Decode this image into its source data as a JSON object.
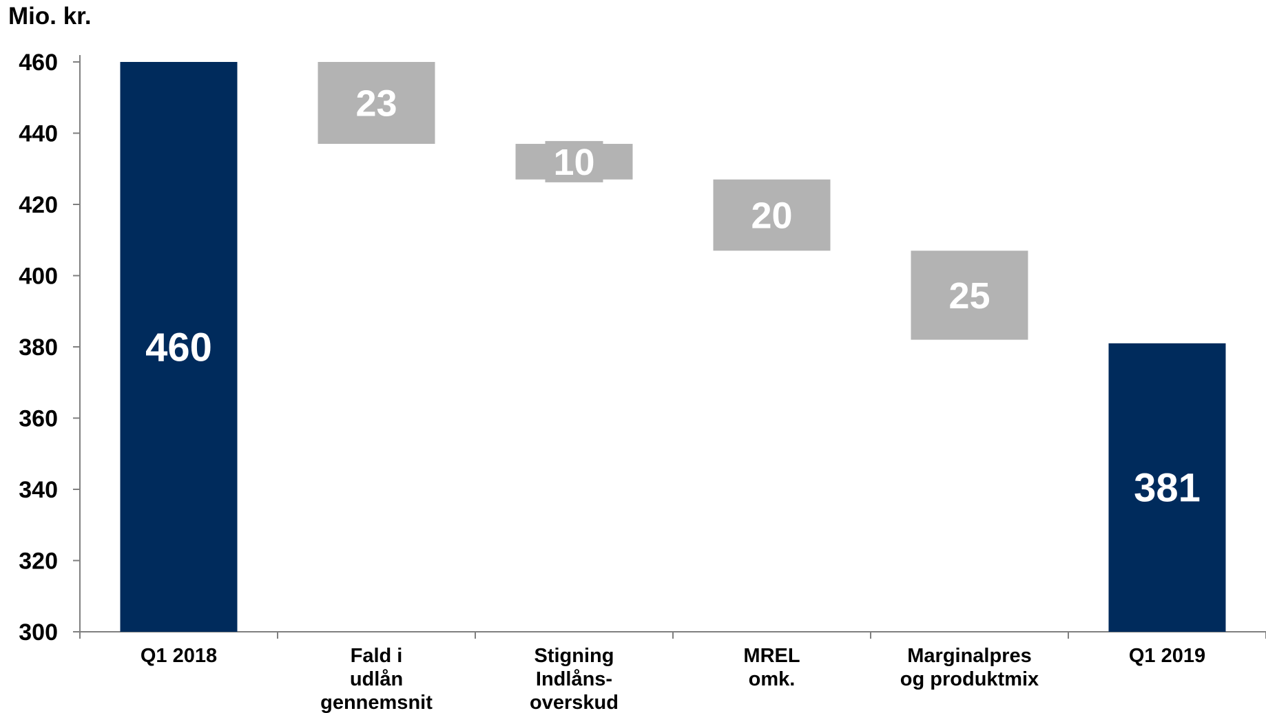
{
  "chart_data": {
    "type": "waterfall",
    "unit_label": "Mio. kr.",
    "ylim": [
      300,
      460
    ],
    "yticks": [
      460,
      440,
      420,
      400,
      380,
      360,
      340,
      320,
      300
    ],
    "ytick_labels": [
      "460",
      "440",
      "420",
      "400",
      "380",
      "360",
      "340",
      "320",
      "300"
    ],
    "categories": [
      [
        "Q1 2018"
      ],
      [
        "Fald i",
        "udlån",
        "gennemsnit"
      ],
      [
        "Stigning",
        "Indlåns-",
        "overskud"
      ],
      [
        "MREL",
        "omk."
      ],
      [
        "Marginalpres",
        "og produktmix"
      ],
      [
        "Q1 2019"
      ]
    ],
    "bars": [
      {
        "kind": "total",
        "value": 460,
        "label": "460"
      },
      {
        "kind": "decrease",
        "value": 23,
        "label": "23"
      },
      {
        "kind": "decrease",
        "value": 10,
        "label": "10"
      },
      {
        "kind": "decrease",
        "value": 20,
        "label": "20"
      },
      {
        "kind": "decrease",
        "value": 25,
        "label": "25"
      },
      {
        "kind": "total",
        "value": 381,
        "label": "381"
      }
    ],
    "colors": {
      "total": "#002b5c",
      "decrease": "#b3b3b3",
      "label_on_bar": "#ffffff",
      "axis": "#7f7f7f",
      "text": "#000000"
    }
  }
}
